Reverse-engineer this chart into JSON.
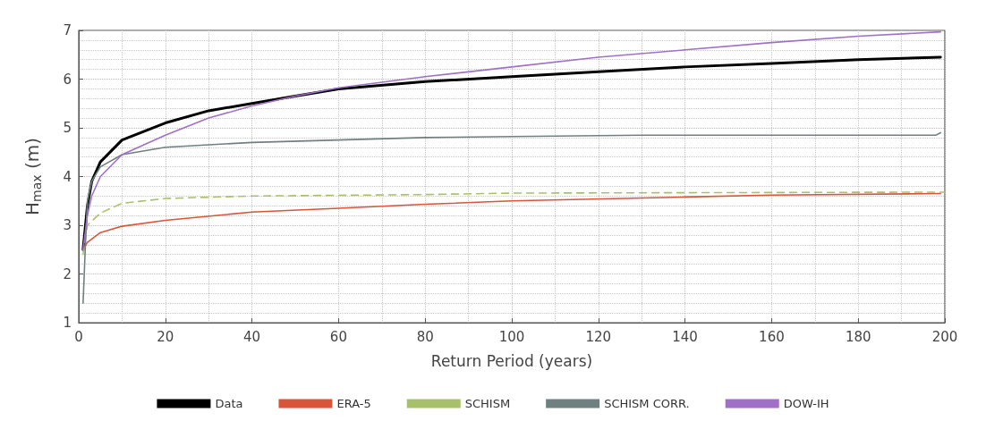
{
  "chart_data": {
    "type": "line",
    "xlabel": "Return Period (years)",
    "ylabel": "H$_{max}$ (m)",
    "xlim": [
      0,
      200
    ],
    "xticks": [
      0,
      20,
      40,
      60,
      80,
      100,
      120,
      140,
      160,
      180,
      200
    ],
    "ylim": [
      1,
      7
    ],
    "yticks": [
      1,
      2,
      3,
      4,
      5,
      6,
      7
    ],
    "grid": true,
    "legend": "bottom",
    "marker": "none",
    "series": [
      {
        "name": "Data",
        "color": "#000000",
        "line_style": "solid",
        "x": [
          1,
          2,
          3,
          5,
          10,
          20,
          30,
          40,
          50,
          60,
          80,
          100,
          120,
          140,
          160,
          180,
          199
        ],
        "values": [
          2.5,
          3.4,
          3.9,
          4.3,
          4.75,
          5.1,
          5.35,
          5.5,
          5.65,
          5.8,
          5.95,
          6.05,
          6.15,
          6.25,
          6.32,
          6.4,
          6.45
        ]
      },
      {
        "name": "ERA-5",
        "color": "#d9553a",
        "line_style": "solid",
        "x": [
          1,
          2,
          5,
          10,
          20,
          40,
          60,
          80,
          100,
          140,
          160,
          199
        ],
        "values": [
          2.5,
          2.65,
          2.85,
          2.98,
          3.1,
          3.27,
          3.35,
          3.43,
          3.5,
          3.58,
          3.62,
          3.65
        ]
      },
      {
        "name": "SCHISM",
        "color": "#a8c06a",
        "line_style": "dashed",
        "x": [
          1,
          2,
          5,
          10,
          20,
          40,
          80,
          100,
          200
        ],
        "values": [
          2.4,
          3.0,
          3.25,
          3.45,
          3.55,
          3.6,
          3.63,
          3.66,
          3.68
        ]
      },
      {
        "name": "SCHISM CORR.",
        "color": "#708080",
        "line_style": "solid",
        "x": [
          1,
          1.5,
          2,
          3,
          5,
          10,
          20,
          30,
          40,
          60,
          80,
          100,
          130,
          198,
          199
        ],
        "values": [
          1.4,
          2.5,
          3.5,
          3.9,
          4.2,
          4.45,
          4.6,
          4.65,
          4.7,
          4.75,
          4.8,
          4.82,
          4.85,
          4.85,
          4.9
        ]
      },
      {
        "name": "DOW-IH",
        "color": "#a070c8",
        "line_style": "solid",
        "x": [
          1,
          2,
          3,
          5,
          10,
          20,
          30,
          40,
          50,
          60,
          80,
          100,
          120,
          140,
          160,
          180,
          199
        ],
        "values": [
          2.5,
          3.2,
          3.6,
          4.0,
          4.45,
          4.85,
          5.2,
          5.45,
          5.65,
          5.82,
          6.05,
          6.25,
          6.45,
          6.6,
          6.75,
          6.88,
          6.97
        ]
      }
    ]
  }
}
